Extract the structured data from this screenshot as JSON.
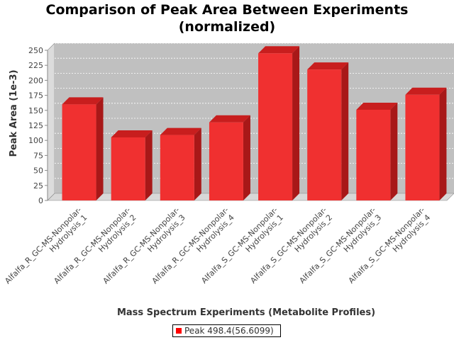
{
  "chart_data": {
    "type": "bar",
    "title_line1": "Comparison of Peak Area Between Experiments",
    "title_line2": "(normalized)",
    "xlabel": "Mass Spectrum Experiments (Metabolite Profiles)",
    "ylabel": "Peak Area (1e-3)",
    "ylim": [
      0,
      250
    ],
    "yticks": [
      "0",
      "25",
      "50",
      "75",
      "100",
      "125",
      "150",
      "175",
      "200",
      "225",
      "250"
    ],
    "categories": [
      [
        "Alfalfa_R_GC-MS-Nonpolar-",
        "Hydrolysis_1"
      ],
      [
        "Alfalfa_R_GC-MS-Nonpolar-",
        "Hydrolysis_2"
      ],
      [
        "Alfalfa_R_GC-MS-Nonpolar-",
        "Hydrolysis_3"
      ],
      [
        "Alfalfa_R_GC-MS-Nonpolar-",
        "Hydrolysis_4"
      ],
      [
        "Alfalfa_S_GC-MS-Nonpolar-",
        "Hydrolysis_1"
      ],
      [
        "Alfalfa_S_GC-MS-Nonpolar-",
        "Hydrolysis_2"
      ],
      [
        "Alfalfa_S_GC-MS-Nonpolar-",
        "Hydrolysis_3"
      ],
      [
        "Alfalfa_S_GC-MS-Nonpolar-",
        "Hydrolysis_4"
      ]
    ],
    "series": [
      {
        "name": "Peak 498.4(56.6099)",
        "values": [
          160,
          105,
          109,
          130,
          245,
          218,
          151,
          176
        ]
      }
    ],
    "grid": true,
    "legend_position": "bottom",
    "colors": {
      "bar_front": "#f03030",
      "bar_top": "#c81e1e",
      "bar_side": "#a81818",
      "plot_back": "#c0c0c0",
      "plot_floor": "#d8d8d8",
      "plot_wall": "#dcdcdc"
    }
  }
}
